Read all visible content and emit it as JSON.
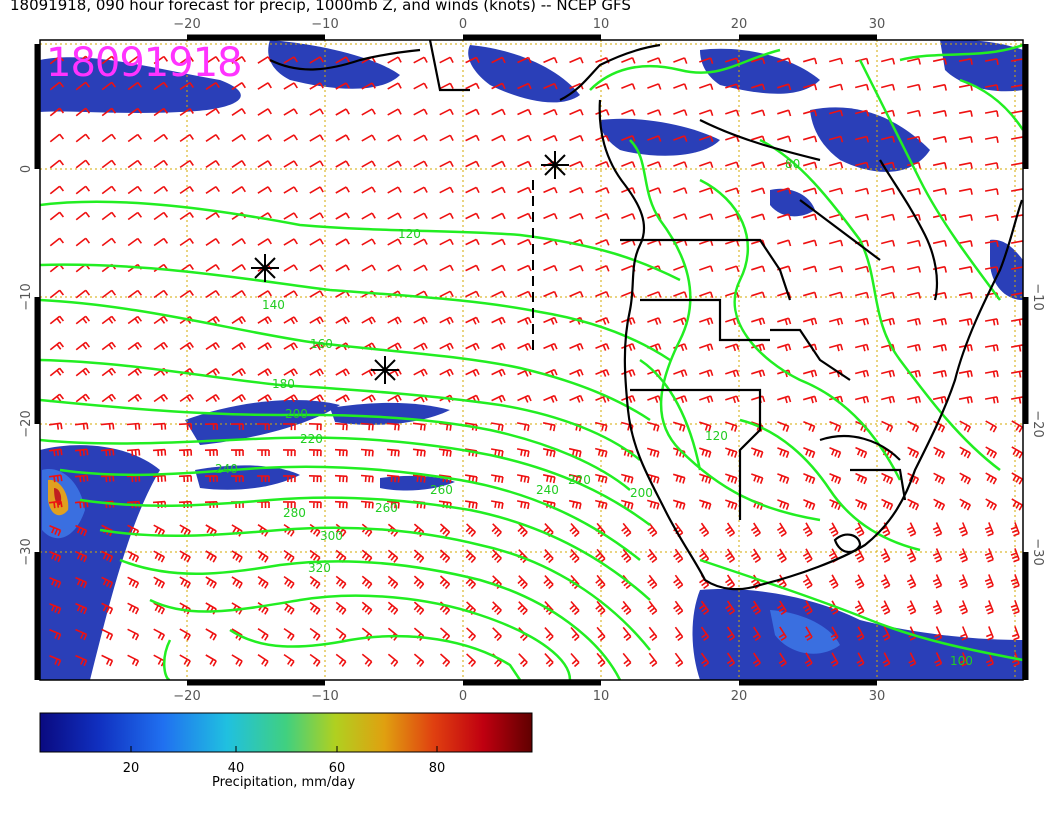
{
  "title": "18091918, 090 hour forecast for precip, 1000mb Z, and winds (knots) -- NCEP GFS",
  "stamp": "18091918",
  "colors": {
    "contour": "#22ee22",
    "barb": "#ee1111",
    "grid": "#d4a800",
    "coast": "#000000",
    "precip_low": "#1f2fa0",
    "precip_mid": "#3a6fe0"
  },
  "axes": {
    "lon_ticks": [
      "−20",
      "−10",
      "0",
      "10",
      "20",
      "30"
    ],
    "lat_ticks_left": [
      "0",
      "−10",
      "−20",
      "−30"
    ],
    "lat_ticks_right": [
      "−10",
      "−20",
      "−30"
    ],
    "lon_range": [
      -30,
      40
    ],
    "lat_range": [
      -40,
      10
    ]
  },
  "contour_labels": [
    "120",
    "140",
    "160",
    "180",
    "200",
    "220",
    "240",
    "260",
    "280",
    "300",
    "320",
    "260",
    "240",
    "220",
    "200",
    "80",
    "120",
    "100"
  ],
  "colorbar": {
    "ticks": [
      "20",
      "40",
      "60",
      "80"
    ],
    "label": "Precipitation, mm/day",
    "range": [
      0,
      98
    ]
  }
}
